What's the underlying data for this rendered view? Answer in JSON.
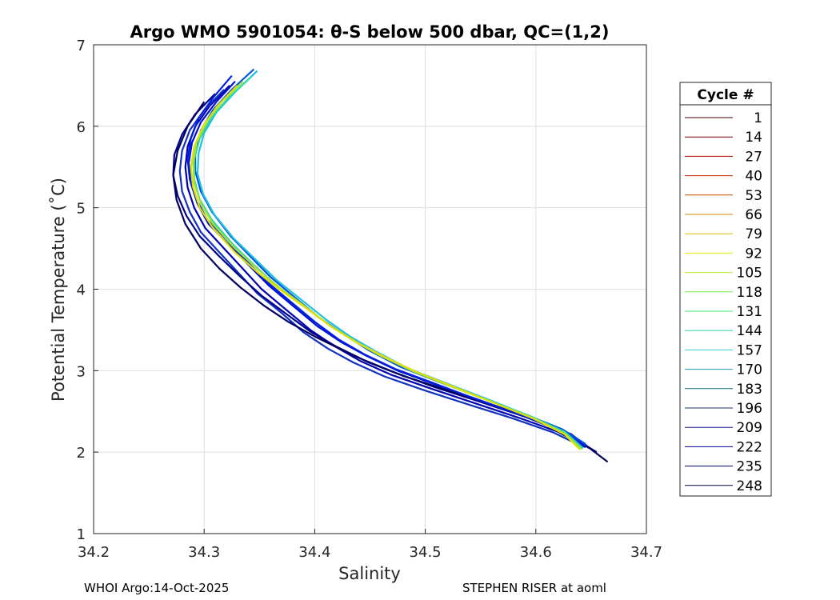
{
  "chart_data": {
    "type": "line",
    "title": "Argo WMO 5901054: θ-S below 500 dbar,  QC=(1,2)",
    "xlabel": "Salinity",
    "ylabel": "Potential Temperature (˚C)",
    "xlim": [
      34.2,
      34.7
    ],
    "ylim": [
      1,
      7
    ],
    "xticks": [
      "34.2",
      "34.3",
      "34.4",
      "34.5",
      "34.6",
      "34.7"
    ],
    "yticks": [
      "1",
      "2",
      "3",
      "4",
      "5",
      "6",
      "7"
    ],
    "grid": true,
    "legend": {
      "title": "Cycle #",
      "placement": "right-outside",
      "entries": [
        "1",
        "14",
        "27",
        "40",
        "53",
        "66",
        "79",
        "92",
        "105",
        "118",
        "131",
        "144",
        "157",
        "170",
        "183",
        "196",
        "209",
        "222",
        "235",
        "248"
      ],
      "colors": [
        "#4a0000",
        "#800000",
        "#b00000",
        "#cc2200",
        "#c84a00",
        "#c88a00",
        "#d4c000",
        "#e8e800",
        "#b8ee30",
        "#78ee50",
        "#40e870",
        "#30d8a0",
        "#30d0d0",
        "#20a0c0",
        "#107080",
        "#183070",
        "#101880",
        "#0000a0",
        "#000060",
        "#00004a"
      ]
    },
    "series_color_order": [
      "#0000b0",
      "#0010d0",
      "#1030c0",
      "#00008a",
      "#000060",
      "#0020e0",
      "#0050e0",
      "#20c0e0",
      "#30d8a0",
      "#a0e040",
      "#e0e000"
    ],
    "series": [
      {
        "x": [
          34.323,
          34.305,
          34.292,
          34.285,
          34.283,
          34.285,
          34.291,
          34.301,
          34.318,
          34.335,
          34.352,
          34.374,
          34.396,
          34.418,
          34.441,
          34.469,
          34.505,
          34.545,
          34.585,
          34.62,
          34.645
        ],
        "y": [
          6.5,
          6.25,
          6.0,
          5.75,
          5.5,
          5.25,
          5.0,
          4.75,
          4.5,
          4.25,
          4.0,
          3.75,
          3.5,
          3.3,
          3.12,
          2.95,
          2.78,
          2.6,
          2.42,
          2.25,
          2.06
        ]
      },
      {
        "x": [
          34.328,
          34.311,
          34.297,
          34.289,
          34.286,
          34.288,
          34.294,
          34.304,
          34.322,
          34.34,
          34.358,
          34.38,
          34.402,
          34.424,
          34.447,
          34.475,
          34.511,
          34.551,
          34.59,
          34.624,
          34.648
        ],
        "y": [
          6.55,
          6.3,
          6.05,
          5.8,
          5.55,
          5.3,
          5.05,
          4.8,
          4.55,
          4.3,
          4.05,
          3.8,
          3.55,
          3.35,
          3.18,
          3.0,
          2.82,
          2.63,
          2.44,
          2.26,
          2.05
        ]
      },
      {
        "x": [
          34.318,
          34.3,
          34.287,
          34.28,
          34.278,
          34.28,
          34.287,
          34.297,
          34.314,
          34.331,
          34.348,
          34.369,
          34.39,
          34.412,
          34.435,
          34.463,
          34.499,
          34.54,
          34.58,
          34.616,
          34.642
        ],
        "y": [
          6.45,
          6.2,
          5.95,
          5.7,
          5.45,
          5.2,
          4.95,
          4.7,
          4.45,
          4.2,
          3.95,
          3.72,
          3.47,
          3.27,
          3.1,
          2.93,
          2.76,
          2.58,
          2.41,
          2.24,
          2.07
        ]
      },
      {
        "x": [
          34.31,
          34.292,
          34.28,
          34.273,
          34.272,
          34.276,
          34.284,
          34.296,
          34.314,
          34.333,
          34.352,
          34.374,
          34.396,
          34.419,
          34.443,
          34.472,
          34.508,
          34.549,
          34.589,
          34.625,
          34.655
        ],
        "y": [
          6.4,
          6.15,
          5.9,
          5.65,
          5.4,
          5.15,
          4.9,
          4.65,
          4.4,
          4.15,
          3.92,
          3.7,
          3.48,
          3.3,
          3.14,
          2.98,
          2.8,
          2.62,
          2.44,
          2.25,
          2.0
        ]
      },
      {
        "x": [
          34.3,
          34.285,
          34.276,
          34.272,
          34.275,
          34.283,
          34.297,
          34.314,
          34.333,
          34.354,
          34.376,
          34.4,
          34.424,
          34.449,
          34.479,
          34.515,
          34.556,
          34.596,
          34.632,
          34.665
        ],
        "y": [
          6.3,
          6.0,
          5.7,
          5.4,
          5.1,
          4.8,
          4.5,
          4.25,
          4.02,
          3.8,
          3.6,
          3.42,
          3.26,
          3.1,
          2.94,
          2.78,
          2.6,
          2.42,
          2.22,
          1.88
        ]
      },
      {
        "x": [
          34.325,
          34.308,
          34.295,
          34.288,
          34.285,
          34.287,
          34.293,
          34.303,
          34.321,
          34.338,
          34.356,
          34.378,
          34.4,
          34.422,
          34.445,
          34.473,
          34.509,
          34.548,
          34.588,
          34.622,
          34.646
        ],
        "y": [
          6.62,
          6.35,
          6.1,
          5.85,
          5.6,
          5.35,
          5.1,
          4.85,
          4.6,
          4.35,
          4.1,
          3.85,
          3.6,
          3.38,
          3.2,
          3.02,
          2.84,
          2.64,
          2.45,
          2.27,
          2.08
        ]
      },
      {
        "x": [
          34.345,
          34.325,
          34.308,
          34.297,
          34.292,
          34.292,
          34.297,
          34.307,
          34.324,
          34.342,
          34.36,
          34.382,
          34.404,
          34.426,
          34.449,
          34.477,
          34.513,
          34.552,
          34.591,
          34.624,
          34.645
        ],
        "y": [
          6.7,
          6.45,
          6.2,
          5.95,
          5.7,
          5.45,
          5.2,
          4.95,
          4.65,
          4.4,
          4.15,
          3.9,
          3.65,
          3.45,
          3.25,
          3.05,
          2.86,
          2.66,
          2.46,
          2.28,
          2.1
        ]
      },
      {
        "x": [
          34.348,
          34.328,
          34.311,
          34.3,
          34.295,
          34.294,
          34.299,
          34.309,
          34.327,
          34.346,
          34.365,
          34.387,
          34.41,
          34.432,
          34.456,
          34.484,
          34.52,
          34.558,
          34.595,
          34.626,
          34.643
        ],
        "y": [
          6.68,
          6.42,
          6.17,
          5.92,
          5.67,
          5.42,
          5.17,
          4.92,
          4.62,
          4.37,
          4.12,
          3.88,
          3.63,
          3.42,
          3.23,
          3.03,
          2.84,
          2.64,
          2.44,
          2.25,
          2.05
        ]
      },
      {
        "x": [
          34.342,
          34.322,
          34.306,
          34.296,
          34.291,
          34.291,
          34.296,
          34.307,
          34.326,
          34.345,
          34.365,
          34.388,
          34.411,
          34.434,
          34.458,
          34.486,
          34.522,
          34.56,
          34.597,
          34.627,
          34.642
        ],
        "y": [
          6.6,
          6.35,
          6.1,
          5.85,
          5.6,
          5.35,
          5.1,
          4.85,
          4.55,
          4.3,
          4.05,
          3.82,
          3.58,
          3.38,
          3.2,
          3.01,
          2.82,
          2.62,
          2.43,
          2.24,
          2.04
        ]
      },
      {
        "x": [
          34.335,
          34.316,
          34.302,
          34.293,
          34.29,
          34.291,
          34.297,
          34.308,
          34.328,
          34.348,
          34.368,
          34.39,
          34.413,
          34.436,
          34.46,
          34.488,
          34.523,
          34.561,
          34.597,
          34.626,
          34.641
        ],
        "y": [
          6.55,
          6.3,
          6.05,
          5.8,
          5.55,
          5.3,
          5.05,
          4.8,
          4.5,
          4.25,
          4.02,
          3.8,
          3.56,
          3.36,
          3.18,
          3.0,
          2.81,
          2.61,
          2.42,
          2.23,
          2.04
        ]
      },
      {
        "x": [
          34.33,
          34.312,
          34.299,
          34.291,
          34.288,
          34.29,
          34.296,
          34.308,
          34.328,
          34.349,
          34.37,
          34.393,
          34.416,
          34.439,
          34.463,
          34.491,
          34.526,
          34.563,
          34.598,
          34.626,
          34.64
        ],
        "y": [
          6.5,
          6.25,
          6.0,
          5.75,
          5.5,
          5.25,
          5.0,
          4.75,
          4.45,
          4.2,
          3.98,
          3.76,
          3.53,
          3.34,
          3.17,
          2.99,
          2.8,
          2.6,
          2.41,
          2.22,
          2.03
        ]
      }
    ]
  },
  "footer": {
    "left": "WHOI Argo:14-Oct-2025",
    "right": "STEPHEN RISER at aoml"
  }
}
